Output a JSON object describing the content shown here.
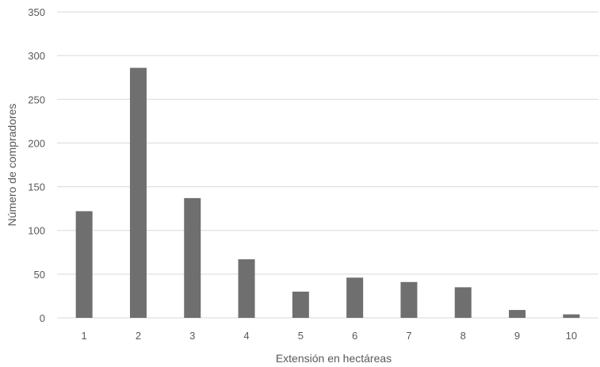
{
  "chart_data": {
    "type": "bar",
    "title": "",
    "xlabel": "Extensión en hectáreas",
    "ylabel": "Número de compradores",
    "categories": [
      "1",
      "2",
      "3",
      "4",
      "5",
      "6",
      "7",
      "8",
      "9",
      "10"
    ],
    "values": [
      122,
      286,
      137,
      67,
      30,
      46,
      41,
      35,
      9,
      4
    ],
    "ylim": [
      0,
      350
    ],
    "yticks": [
      "0",
      "50",
      "100",
      "150",
      "200",
      "250",
      "300",
      "350"
    ],
    "ytick_values": [
      0,
      50,
      100,
      150,
      200,
      250,
      300,
      350
    ],
    "grid": true,
    "legend": "none",
    "colors": {
      "bar": "#6f6f6f",
      "grid": "#d9d9d9",
      "text": "#595959"
    }
  }
}
